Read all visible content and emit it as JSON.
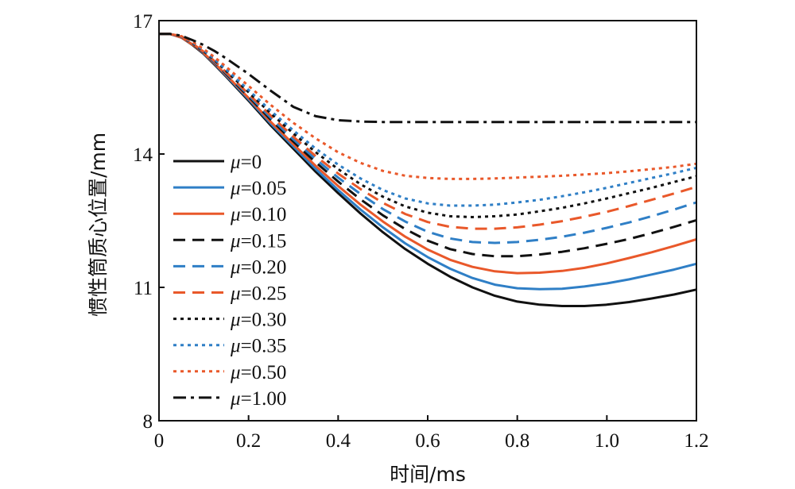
{
  "chart_data": {
    "type": "line",
    "xlabel": "时间/ms",
    "ylabel": "惯性筒质心位置/mm",
    "xlim": [
      0,
      1.2
    ],
    "ylim": [
      8,
      17
    ],
    "xticks": [
      0,
      0.2,
      0.4,
      0.6,
      0.8,
      1.0,
      1.2
    ],
    "xtick_labels": [
      "0",
      "0.2",
      "0.4",
      "0.6",
      "0.8",
      "1.0",
      "1.2"
    ],
    "yticks": [
      8,
      11,
      14,
      17
    ],
    "ytick_labels": [
      "8",
      "11",
      "14",
      "17"
    ],
    "grid": false,
    "legend_position": "left",
    "x": [
      0,
      0.025,
      0.05,
      0.075,
      0.1,
      0.125,
      0.15,
      0.2,
      0.25,
      0.3,
      0.35,
      0.4,
      0.45,
      0.5,
      0.55,
      0.6,
      0.65,
      0.7,
      0.75,
      0.8,
      0.85,
      0.9,
      0.95,
      1.0,
      1.05,
      1.1,
      1.15,
      1.2
    ],
    "series": [
      {
        "name": "μ=0",
        "color": "#111111",
        "dash": "solid",
        "values": [
          16.7,
          16.7,
          16.62,
          16.45,
          16.25,
          16.0,
          15.74,
          15.2,
          14.64,
          14.12,
          13.6,
          13.12,
          12.66,
          12.24,
          11.86,
          11.53,
          11.24,
          11.0,
          10.81,
          10.68,
          10.61,
          10.58,
          10.58,
          10.61,
          10.67,
          10.75,
          10.84,
          10.95
        ]
      },
      {
        "name": "μ=0.05",
        "color": "#2f7fc6",
        "dash": "solid",
        "values": [
          16.7,
          16.7,
          16.62,
          16.46,
          16.26,
          16.02,
          15.76,
          15.23,
          14.68,
          14.17,
          13.66,
          13.19,
          12.75,
          12.35,
          11.99,
          11.68,
          11.42,
          11.21,
          11.06,
          10.98,
          10.96,
          10.97,
          11.02,
          11.09,
          11.18,
          11.29,
          11.4,
          11.53
        ]
      },
      {
        "name": "μ=0.10",
        "color": "#e9582a",
        "dash": "solid",
        "values": [
          16.7,
          16.7,
          16.62,
          16.46,
          16.27,
          16.03,
          15.78,
          15.26,
          14.72,
          14.22,
          13.73,
          13.28,
          12.86,
          12.48,
          12.14,
          11.85,
          11.62,
          11.46,
          11.36,
          11.32,
          11.33,
          11.37,
          11.44,
          11.54,
          11.66,
          11.79,
          11.93,
          12.08
        ]
      },
      {
        "name": "μ=0.15",
        "color": "#111111",
        "dash": "dash",
        "values": [
          16.7,
          16.7,
          16.63,
          16.47,
          16.28,
          16.05,
          15.8,
          15.29,
          14.77,
          14.28,
          13.81,
          13.38,
          12.98,
          12.62,
          12.31,
          12.05,
          11.86,
          11.75,
          11.7,
          11.7,
          11.74,
          11.8,
          11.88,
          11.98,
          12.09,
          12.22,
          12.36,
          12.51
        ]
      },
      {
        "name": "μ=0.20",
        "color": "#2f7fc6",
        "dash": "dash",
        "values": [
          16.7,
          16.7,
          16.63,
          16.48,
          16.29,
          16.06,
          15.82,
          15.32,
          14.81,
          14.33,
          13.88,
          13.47,
          13.1,
          12.76,
          12.48,
          12.25,
          12.1,
          12.02,
          12.0,
          12.02,
          12.07,
          12.14,
          12.23,
          12.34,
          12.46,
          12.6,
          12.75,
          12.91
        ]
      },
      {
        "name": "μ=0.25",
        "color": "#e9582a",
        "dash": "dash",
        "values": [
          16.7,
          16.7,
          16.63,
          16.48,
          16.3,
          16.08,
          15.84,
          15.35,
          14.86,
          14.39,
          13.95,
          13.56,
          13.21,
          12.9,
          12.65,
          12.47,
          12.36,
          12.32,
          12.32,
          12.35,
          12.41,
          12.49,
          12.59,
          12.7,
          12.83,
          12.97,
          13.11,
          13.26
        ]
      },
      {
        "name": "μ=0.30",
        "color": "#111111",
        "dash": "dot",
        "values": [
          16.7,
          16.7,
          16.64,
          16.49,
          16.31,
          16.1,
          15.87,
          15.39,
          14.91,
          14.46,
          14.04,
          13.66,
          13.32,
          13.04,
          12.82,
          12.68,
          12.6,
          12.58,
          12.6,
          12.64,
          12.71,
          12.79,
          12.89,
          13.0,
          13.12,
          13.24,
          13.37,
          13.5
        ]
      },
      {
        "name": "μ=0.35",
        "color": "#2f7fc6",
        "dash": "dot",
        "values": [
          16.7,
          16.7,
          16.64,
          16.5,
          16.33,
          16.12,
          15.9,
          15.44,
          14.97,
          14.53,
          14.12,
          13.76,
          13.45,
          13.19,
          13.0,
          12.89,
          12.84,
          12.84,
          12.86,
          12.91,
          12.97,
          13.05,
          13.14,
          13.24,
          13.35,
          13.46,
          13.57,
          13.69
        ]
      },
      {
        "name": "μ=0.50",
        "color": "#e9582a",
        "dash": "dot",
        "values": [
          16.7,
          16.7,
          16.65,
          16.52,
          16.36,
          16.17,
          15.96,
          15.53,
          15.1,
          14.7,
          14.35,
          14.04,
          13.8,
          13.62,
          13.51,
          13.46,
          13.44,
          13.44,
          13.45,
          13.47,
          13.49,
          13.51,
          13.54,
          13.57,
          13.61,
          13.66,
          13.71,
          13.78
        ]
      },
      {
        "name": "μ=1.00",
        "color": "#111111",
        "dash": "dashdot",
        "values": [
          16.7,
          16.7,
          16.66,
          16.56,
          16.45,
          16.31,
          16.15,
          15.8,
          15.42,
          15.06,
          14.85,
          14.76,
          14.73,
          14.72,
          14.72,
          14.72,
          14.72,
          14.72,
          14.72,
          14.72,
          14.72,
          14.72,
          14.72,
          14.72,
          14.72,
          14.72,
          14.72,
          14.72
        ]
      }
    ]
  }
}
